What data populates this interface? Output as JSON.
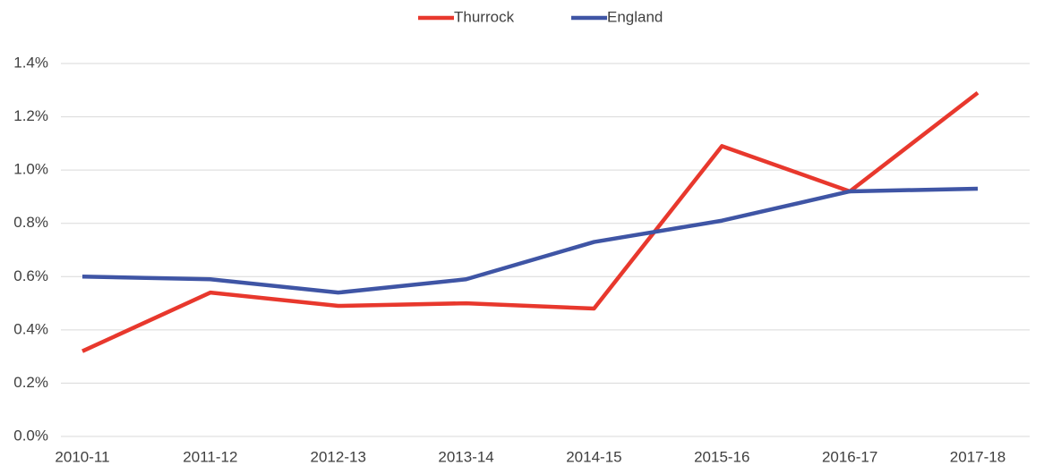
{
  "chart_data": {
    "type": "line",
    "categories": [
      "2010-11",
      "2011-12",
      "2012-13",
      "2013-14",
      "2014-15",
      "2015-16",
      "2016-17",
      "2017-18"
    ],
    "series": [
      {
        "name": "Thurrock",
        "color": "#e8382d",
        "values": [
          0.32,
          0.54,
          0.49,
          0.5,
          0.48,
          1.09,
          0.92,
          1.29
        ]
      },
      {
        "name": "England",
        "color": "#3f55a5",
        "values": [
          0.6,
          0.59,
          0.54,
          0.59,
          0.73,
          0.81,
          0.92,
          0.93
        ]
      }
    ],
    "ylim": [
      0,
      1.4
    ],
    "yticks": [
      {
        "value": 0,
        "label": "0.0%"
      },
      {
        "value": 0.2,
        "label": "0.2%"
      },
      {
        "value": 0.4,
        "label": "0.4%"
      },
      {
        "value": 0.6,
        "label": "0.6%"
      },
      {
        "value": 0.8,
        "label": "0.8%"
      },
      {
        "value": 1.0,
        "label": "1.0%"
      },
      {
        "value": 1.2,
        "label": "1.2%"
      },
      {
        "value": 1.4,
        "label": "1.4%"
      }
    ],
    "grid": true,
    "legend": "top"
  }
}
